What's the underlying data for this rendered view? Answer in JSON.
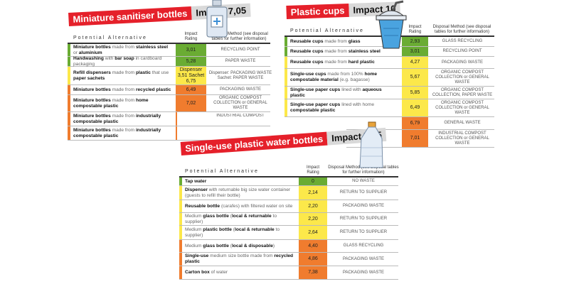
{
  "colors": {
    "green": "#6aac33",
    "yellow": "#fce84a",
    "orange": "#f07c2e",
    "red": "#e5202a",
    "gray": "#d9d9d9"
  },
  "headers": {
    "alternative": "Potential Alternative",
    "rating": "Impact Rating",
    "disposal": "Disposal Method (see disposal tables for further information)"
  },
  "icons": [
    "sanitiser-bottle-icon",
    "plastic-cup-icon",
    "water-bottle-icon"
  ],
  "tables": [
    {
      "title": "Miniature sanitiser bottles",
      "impact": "Impact 7,05",
      "rows": [
        {
          "level": "green",
          "alt": [
            [
              "Miniature bottles",
              1
            ],
            [
              " made from ",
              0
            ],
            [
              "stainless steel",
              1
            ],
            [
              " or ",
              0
            ],
            [
              "aluminium",
              1
            ]
          ],
          "rating": "3,01",
          "disposal": "RECYCLING POINT"
        },
        {
          "level": "green",
          "alt": [
            [
              "Handwashing",
              1
            ],
            [
              " with ",
              0
            ],
            [
              "bar soap",
              1
            ],
            [
              " in cardboard packaging",
              0
            ]
          ],
          "rating": "5,28",
          "disposal": "PAPER WASTE"
        },
        {
          "level": "yellow",
          "alt": [
            [
              "Refill dispensers",
              1
            ],
            [
              " made from ",
              0
            ],
            [
              "plastic",
              1
            ],
            [
              " that use ",
              0
            ],
            [
              "paper sachets",
              1
            ]
          ],
          "rating": "Dispenser 3,51 Sachet 6,75",
          "disposal": "Dispenser: PACKAGING WASTE Sachet: PAPER WASTE"
        },
        {
          "level": "orange",
          "alt": [
            [
              "Miniature bottles",
              1
            ],
            [
              " made from ",
              0
            ],
            [
              "recycled plastic",
              1
            ]
          ],
          "rating": "6,49",
          "disposal": "PACKAGING WASTE"
        },
        {
          "level": "orange",
          "alt": [
            [
              "Miniature bottles",
              1
            ],
            [
              " made from ",
              0
            ],
            [
              "home compostable plastic",
              1
            ]
          ],
          "rating": "7,02",
          "disposal": "ORGANIC COMPOST COLLECTION or GENERAL WASTE"
        },
        {
          "level": "orange",
          "alt": [
            [
              "Miniature bottles",
              1
            ],
            [
              " made from ",
              0
            ],
            [
              "industrially compostable plastic",
              1
            ]
          ],
          "rating": "",
          "disposal": "INDUSTRIAL COMPOST"
        },
        {
          "level": "orange",
          "alt": [
            [
              "Miniature bottles",
              1
            ],
            [
              " made from ",
              0
            ],
            [
              "industrially compostable plastic",
              1
            ]
          ],
          "rating": "",
          "disposal": ""
        }
      ]
    },
    {
      "title": "Plastic cups",
      "impact": "Impact 10",
      "rows": [
        {
          "level": "green",
          "alt": [
            [
              "Reusable cups",
              1
            ],
            [
              " made from ",
              0
            ],
            [
              "glass",
              1
            ]
          ],
          "rating": "2,93",
          "disposal": "GLASS RECYCLING"
        },
        {
          "level": "green",
          "alt": [
            [
              "Reusable cups",
              1
            ],
            [
              " made from ",
              0
            ],
            [
              "stainless steel",
              1
            ]
          ],
          "rating": "3,01",
          "disposal": "RECYCLING POINT"
        },
        {
          "level": "yellow",
          "alt": [
            [
              "Reusable cups",
              1
            ],
            [
              " made from ",
              0
            ],
            [
              "hard plastic",
              1
            ]
          ],
          "rating": "4,27",
          "disposal": "PACKAGING WASTE"
        },
        {
          "level": "yellow",
          "alt": [
            [
              "Single-use cups",
              1
            ],
            [
              " made from 100% ",
              0
            ],
            [
              "home compostable material",
              1
            ],
            [
              " (e.g. bagasse)",
              0
            ]
          ],
          "rating": "5,67",
          "disposal": "ORGANIC COMPOST COLLECTION or GENERAL WASTE"
        },
        {
          "level": "yellow",
          "alt": [
            [
              "Single-use paper cups",
              1
            ],
            [
              " lined with ",
              0
            ],
            [
              "aqueous plastic",
              1
            ]
          ],
          "rating": "5,85",
          "disposal": "ORGANIC COMPOST COLLECTION, PAPER WASTE"
        },
        {
          "level": "yellow",
          "alt": [
            [
              "Single-use paper cups",
              1
            ],
            [
              " lined with home ",
              0
            ],
            [
              "compostable plastic",
              1
            ]
          ],
          "rating": "6,49",
          "disposal": "ORGANIC COMPOST COLLECTION or GENERAL WASTE"
        },
        {
          "level": "orange",
          "alt": [],
          "rating": "6,79",
          "disposal": "GENERAL WASTE"
        },
        {
          "level": "orange",
          "alt": [],
          "rating": "7,01",
          "disposal": "INDUSTRIAL COMPOST COLLECTION or GENERAL WASTE"
        }
      ]
    },
    {
      "title": "Single-use plastic water bottles",
      "impact": "Impact 7,05",
      "rows": [
        {
          "level": "green",
          "alt": [
            [
              "Tap water",
              1
            ]
          ],
          "rating": "0",
          "disposal": "NO WASTE"
        },
        {
          "level": "yellow",
          "alt": [
            [
              "Dispenser",
              1
            ],
            [
              " with returnable big size water container (guests to refill their bottle)",
              0
            ]
          ],
          "rating": "2,14",
          "disposal": "RETURN TO SUPPLIER"
        },
        {
          "level": "yellow",
          "alt": [
            [
              "Reusable bottle",
              1
            ],
            [
              " (carafes) with filtered water on site",
              0
            ]
          ],
          "rating": "2,20",
          "disposal": "PACKAGING WASTE"
        },
        {
          "level": "yellow",
          "alt": [
            [
              "Medium ",
              0
            ],
            [
              "glass bottle",
              1
            ],
            [
              " (",
              0
            ],
            [
              "local & returnable",
              1
            ],
            [
              " to supplier)",
              0
            ]
          ],
          "rating": "2,20",
          "disposal": "RETURN TO SUPPLIER"
        },
        {
          "level": "yellow",
          "alt": [
            [
              "Medium ",
              0
            ],
            [
              "plastic bottle",
              1
            ],
            [
              " (",
              0
            ],
            [
              "local & returnable",
              1
            ],
            [
              " to supplier)",
              0
            ]
          ],
          "rating": "2,64",
          "disposal": "RETURN TO SUPPLIER"
        },
        {
          "level": "orange",
          "alt": [
            [
              "Medium ",
              0
            ],
            [
              "glass bottle",
              1
            ],
            [
              " (",
              0
            ],
            [
              "local & disposable",
              1
            ],
            [
              ")",
              0
            ]
          ],
          "rating": "4,40",
          "disposal": "GLASS RECYCLING"
        },
        {
          "level": "orange",
          "alt": [
            [
              "Single-use",
              1
            ],
            [
              " medium size bottle made from ",
              0
            ],
            [
              "recycled plastic",
              1
            ]
          ],
          "rating": "4,86",
          "disposal": "PACKAGING WASTE"
        },
        {
          "level": "orange",
          "alt": [
            [
              "Carton box",
              1
            ],
            [
              " of water",
              0
            ]
          ],
          "rating": "7,38",
          "disposal": "PACKAGING WASTE"
        }
      ]
    }
  ]
}
